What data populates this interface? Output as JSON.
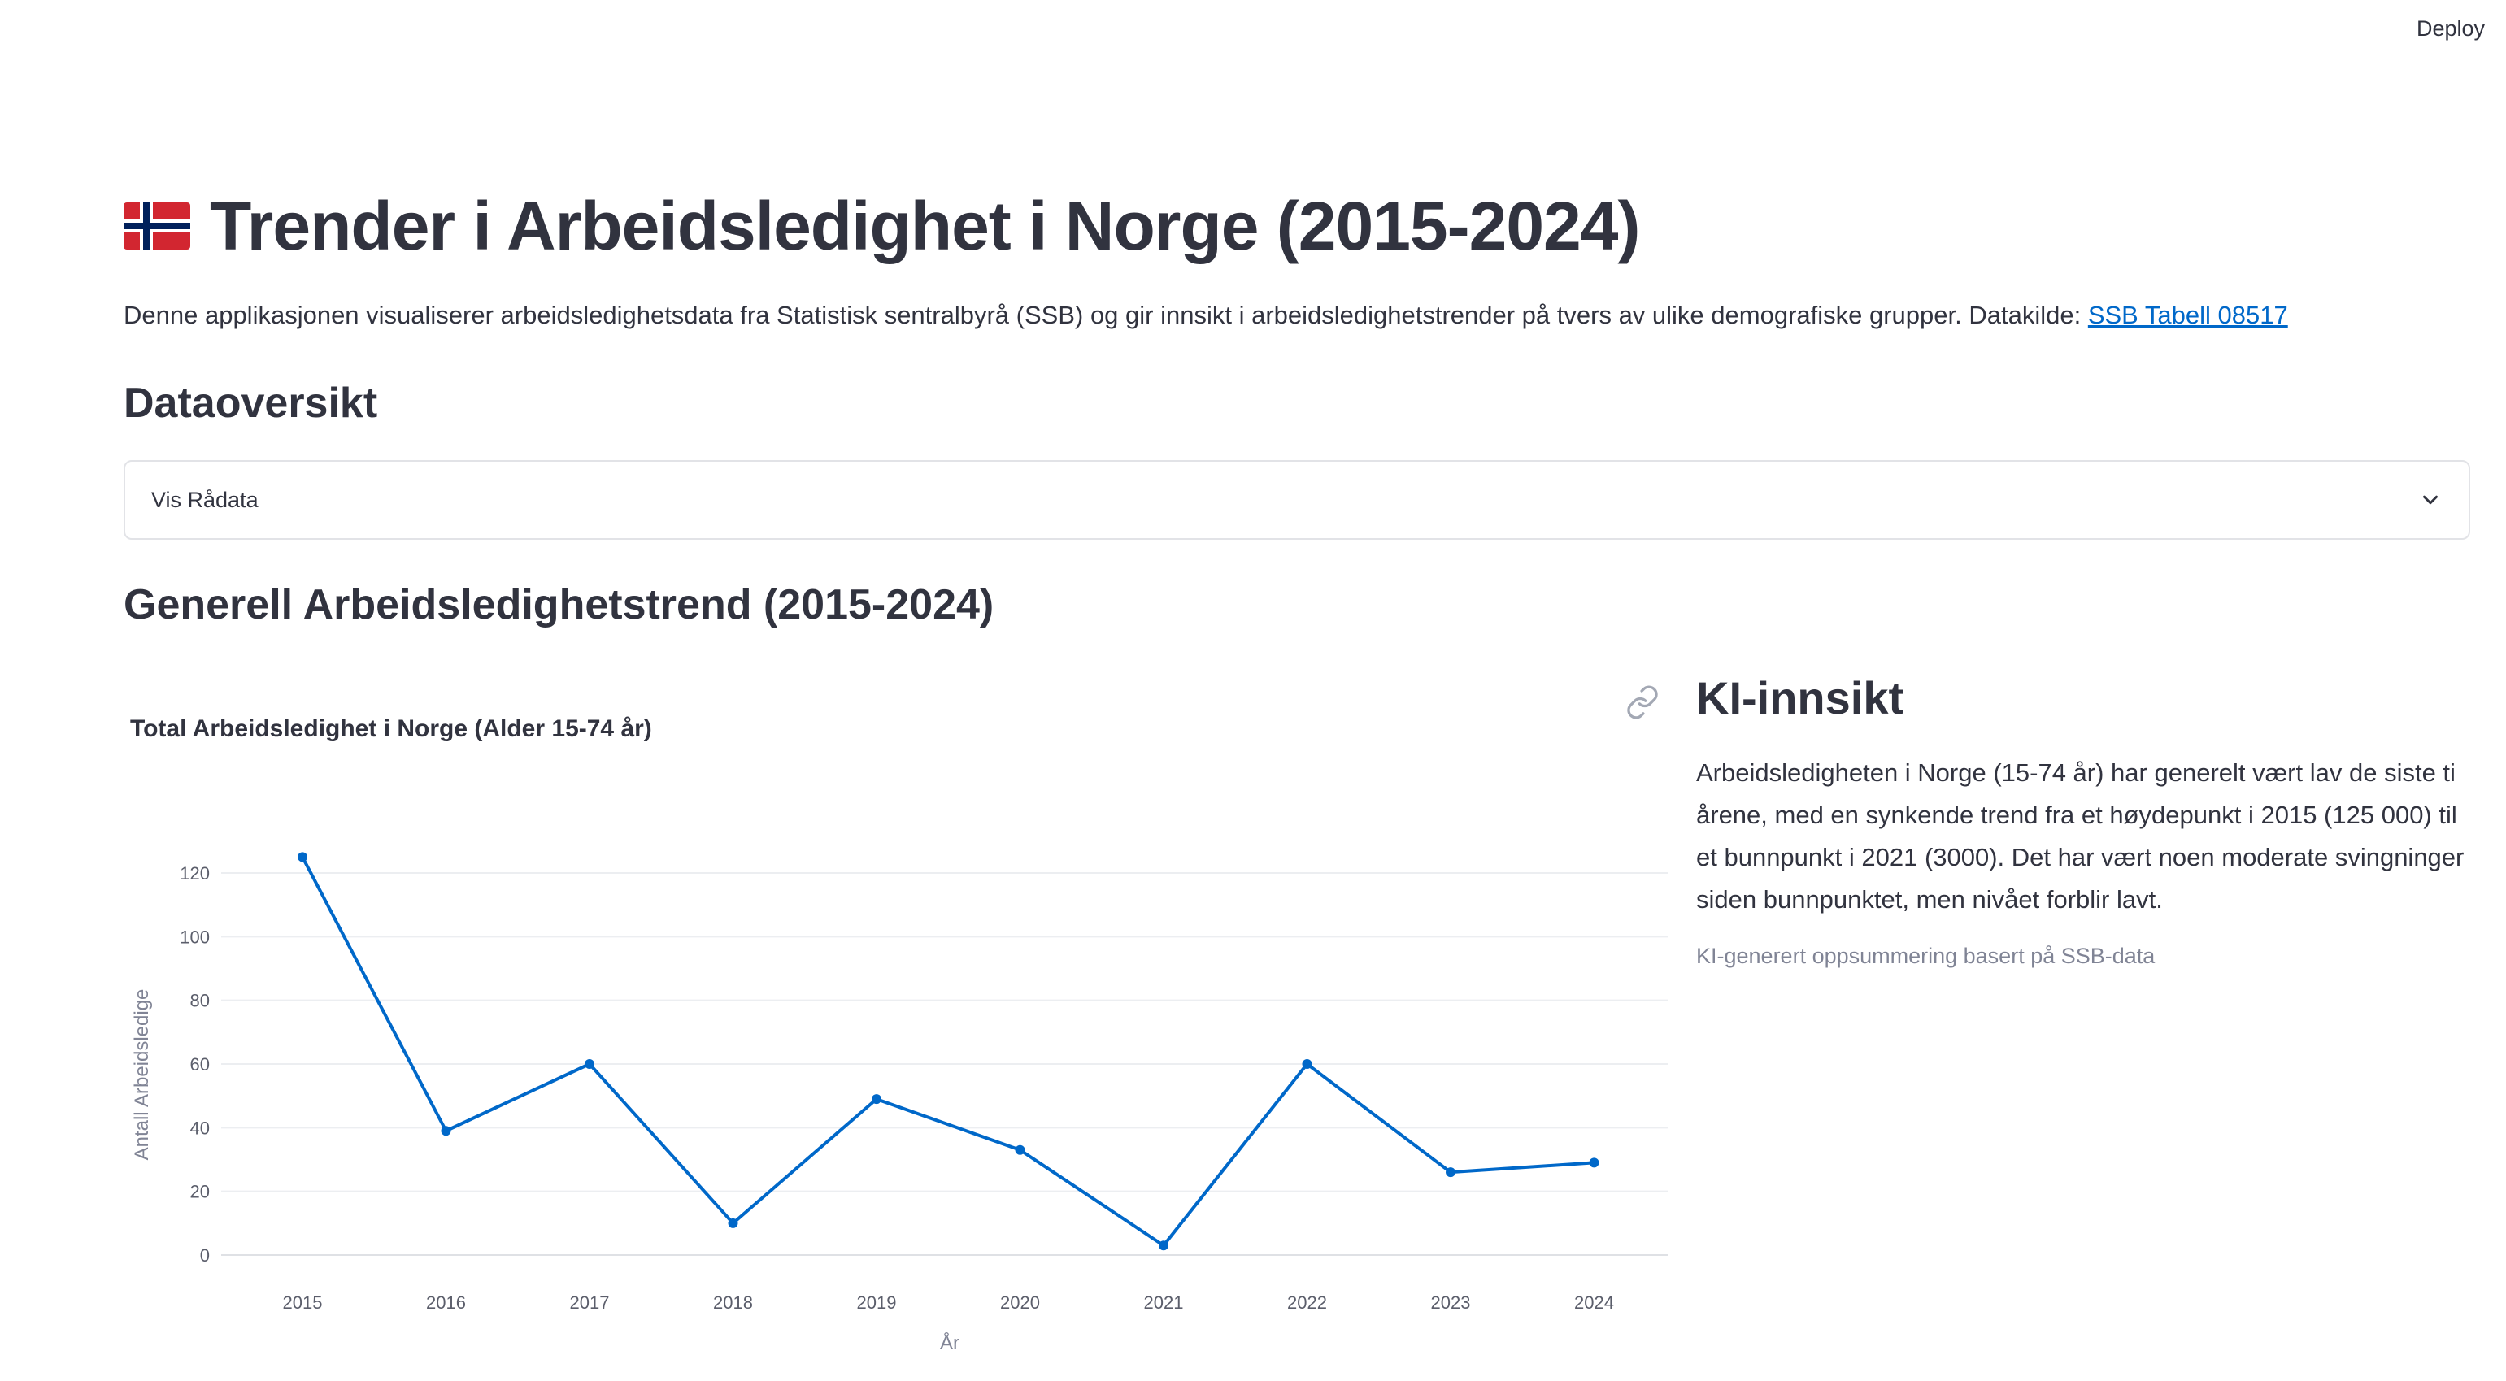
{
  "header": {
    "deploy_label": "Deploy"
  },
  "page": {
    "title": "Trender i Arbeidsledighet i Norge (2015-2024)",
    "intro_text": "Denne applikasjonen visualiserer arbeidsledighetsdata fra Statistisk sentralbyrå (SSB) og gir innsikt i arbeidsledighetstrender på tvers av ulike demografiske grupper. Datakilde: ",
    "intro_link": "SSB Tabell 08517"
  },
  "overview": {
    "heading": "Dataoversikt",
    "expander_label": "Vis Rådata"
  },
  "trend": {
    "heading": "Generell Arbeidsledighetstrend (2015-2024)"
  },
  "ai": {
    "heading": "KI-innsikt",
    "text": "Arbeidsledigheten i Norge (15-74 år) har generelt vært lav de siste ti årene, med en synkende trend fra et høydepunkt i 2015 (125 000) til et bunnpunkt i 2021 (3000). Det har vært noen moderate svingninger siden bunnpunktet, men nivået forblir lavt.",
    "caption": "KI-generert oppsummering basert på SSB-data"
  },
  "colors": {
    "line": "#0068c9",
    "link": "#0068c9",
    "text": "#31333f",
    "muted": "#808495"
  },
  "chart_data": {
    "type": "line",
    "title": "Total Arbeidsledighet i Norge (Alder 15-74 år)",
    "xlabel": "År",
    "ylabel": "Antall Arbeidsledige",
    "x": [
      "2015",
      "2016",
      "2017",
      "2018",
      "2019",
      "2020",
      "2021",
      "2022",
      "2023",
      "2024"
    ],
    "series": [
      {
        "values": [
          125,
          39,
          60,
          10,
          49,
          33,
          3,
          60,
          26,
          29
        ]
      }
    ],
    "yticks": [
      0,
      20,
      40,
      60,
      80,
      100,
      120
    ],
    "ylim": [
      -7,
      128
    ],
    "grid": true
  }
}
